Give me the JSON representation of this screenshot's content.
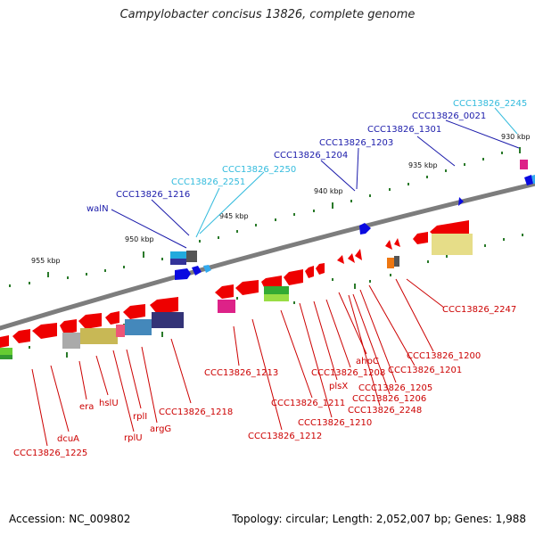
{
  "title": "Campylobacter concisus 13826, complete genome",
  "footer": {
    "accession": "Accession: NC_009802",
    "summary": "Topology: circular; Length: 2,052,007 bp; Genes: 1,988"
  },
  "scale_labels": [
    "955 kbp",
    "950 kbp",
    "945 kbp",
    "940 kbp",
    "935 kbp",
    "930 kbp"
  ],
  "labels_top": [
    "walN",
    "CCC13826_1216",
    "CCC13826_2251",
    "CCC13826_2250",
    "CCC13826_1204",
    "CCC13826_1203",
    "CCC13826_1301",
    "CCC13826_0021",
    "CCC13826_2245"
  ],
  "labels_bottom": [
    "CCC13826_1225",
    "dcuA",
    "era",
    "hslU",
    "rplU",
    "rplI",
    "argG",
    "CCC13826_1218",
    "CCC13826_1213",
    "CCC13826_1212",
    "CCC13826_1211",
    "CCC13826_1210",
    "plsX",
    "CCC13826_1208",
    "ahpC",
    "CCC13826_2248",
    "CCC13826_1206",
    "CCC13826_1205",
    "CCC13826_1201",
    "CCC13826_1200",
    "CCC13826_2247"
  ],
  "colors": {
    "backbone": "#808080",
    "gene_forward": "#0000ee",
    "gene_reverse": "#ee0000",
    "label_red": "#cc0000",
    "label_blue": "#1a1aaa",
    "label_cyan": "#33bbdd",
    "tick": "#2a7a2a"
  }
}
